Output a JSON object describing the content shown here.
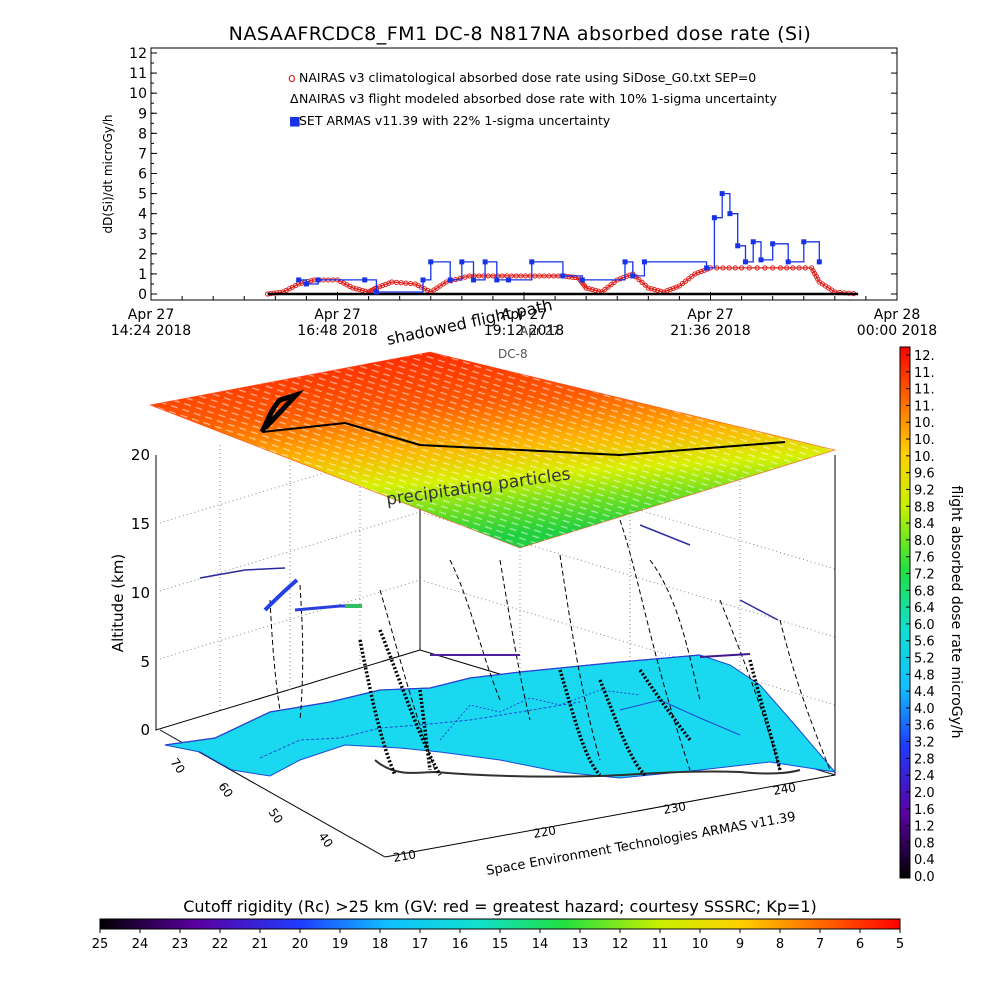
{
  "title": "NASAAFRCDC8_FM1 DC-8   N817NA absorbed dose rate (Si)",
  "colors": {
    "nairas_clim": "#e0201b",
    "nairas_flight": "#000000",
    "armas": "#1733e6",
    "ocean_land": "#19d8ef"
  },
  "chart_data": [
    {
      "type": "line",
      "ylabel": "dD(Si)/dt microGy/h",
      "ylim": [
        0,
        12
      ],
      "yticks": [
        "0",
        "1",
        "2",
        "3",
        "4",
        "5",
        "6",
        "7",
        "8",
        "9",
        "10",
        "11",
        "12"
      ],
      "xlim": [
        "Apr 27 14:24 2018",
        "Apr 28 00:00 2018"
      ],
      "xticks": [
        {
          "day": "Apr 27",
          "time": "14:24 2018"
        },
        {
          "day": "Apr 27",
          "time": "16:48 2018"
        },
        {
          "day": "Apr 27",
          "time": "19:12 2018"
        },
        {
          "day": "Apr 27",
          "time": "21:36 2018"
        },
        {
          "day": "Apr 28",
          "time": "00:00 2018"
        }
      ],
      "legend": [
        {
          "marker": "o",
          "text": "NAIRAS v3 climatological absorbed dose rate using SiDose_G0.txt SEP=0"
        },
        {
          "marker": "Δ",
          "text": "NAIRAS v3 flight modeled absorbed dose rate with 10% 1-sigma uncertainty"
        },
        {
          "marker": "■",
          "text": "SET ARMAS v11.39 with 22% 1-sigma uncertainty"
        }
      ],
      "series": [
        {
          "name": "NAIRAS v3 climatological absorbed dose rate using SiDose_G0.txt SEP=0",
          "hours": [
            15.9,
            16.1,
            16.3,
            16.5,
            16.8,
            17.0,
            17.2,
            17.3,
            17.5,
            17.8,
            18.0,
            18.2,
            18.5,
            18.8,
            19.1,
            19.4,
            19.7,
            19.9,
            20.0,
            20.2,
            20.4,
            20.6,
            20.8,
            21.0,
            21.2,
            21.4,
            21.6,
            22.0,
            22.5,
            22.9,
            23.0,
            23.2,
            23.5
          ],
          "values": [
            0,
            0.1,
            0.5,
            0.7,
            0.7,
            0.3,
            0.1,
            0.3,
            0.6,
            0.5,
            0.1,
            0.6,
            0.9,
            0.9,
            0.9,
            0.9,
            0.9,
            0.8,
            0.3,
            0.1,
            0.7,
            1.0,
            0.3,
            0.1,
            0.4,
            1.0,
            1.3,
            1.3,
            1.3,
            1.3,
            0.6,
            0.1,
            0
          ]
        },
        {
          "name": "NAIRAS v3 flight modeled absorbed dose rate with 10% 1-sigma uncertainty",
          "hours": [
            15.9,
            23.5
          ],
          "values": [
            0,
            0
          ]
        },
        {
          "name": "SET ARMAS v11.39 with 22% 1-sigma uncertainty",
          "hours": [
            16.3,
            16.4,
            16.55,
            17.15,
            17.3,
            17.9,
            18.0,
            18.25,
            18.4,
            18.55,
            18.7,
            18.85,
            19.0,
            19.3,
            19.7,
            19.95,
            20.5,
            20.6,
            20.75,
            21.55,
            21.65,
            21.75,
            21.85,
            21.95,
            22.05,
            22.15,
            22.25,
            22.4,
            22.6,
            22.8,
            23.0
          ],
          "values": [
            0.7,
            0.5,
            0.7,
            0.7,
            0.1,
            0.7,
            1.6,
            0.7,
            1.6,
            0.7,
            1.6,
            0.7,
            0.7,
            1.6,
            0.9,
            0.7,
            1.6,
            0.9,
            1.6,
            1.3,
            3.8,
            5.0,
            4.0,
            2.4,
            1.6,
            2.6,
            1.7,
            2.5,
            1.6,
            2.6,
            1.6
          ]
        }
      ]
    },
    {
      "type": "heatmap",
      "zlabel": "Altitude (km)",
      "zticks": [
        "0",
        "5",
        "10",
        "15",
        "20"
      ],
      "lat_ticks": [
        "70",
        "60",
        "50",
        "40"
      ],
      "lon_ticks": [
        "210",
        "220",
        "230",
        "240"
      ],
      "annotations": [
        "shadowed flight path",
        "precipitating particles"
      ],
      "top_text": [
        "Apr 27",
        "DC-8"
      ],
      "credit": "Space Environment Technologies ARMAS v11.39"
    },
    {
      "type": "heatmap",
      "orientation": "vertical",
      "label": "flight absorbed dose rate microGy/h",
      "ticks": [
        "12.",
        "11.",
        "11.",
        "11.",
        "10.",
        "10.",
        "10.",
        "9.6",
        "9.2",
        "8.8",
        "8.4",
        "8.0",
        "7.6",
        "7.2",
        "6.8",
        "6.4",
        "6.0",
        "5.6",
        "5.2",
        "4.8",
        "4.4",
        "4.0",
        "3.6",
        "3.2",
        "2.8",
        "2.4",
        "2.0",
        "1.6",
        "1.2",
        "0.8",
        "0.4",
        "0.0"
      ]
    },
    {
      "type": "heatmap",
      "orientation": "horizontal",
      "label": "Cutoff rigidity (Rc) >25 km (GV: red = greatest hazard; courtesy SSSRC; Kp=1)",
      "ticks": [
        "25",
        "24",
        "23",
        "22",
        "21",
        "20",
        "19",
        "18",
        "17",
        "16",
        "15",
        "14",
        "13",
        "12",
        "11",
        "10",
        "9",
        "8",
        "7",
        "6",
        "5"
      ]
    }
  ]
}
